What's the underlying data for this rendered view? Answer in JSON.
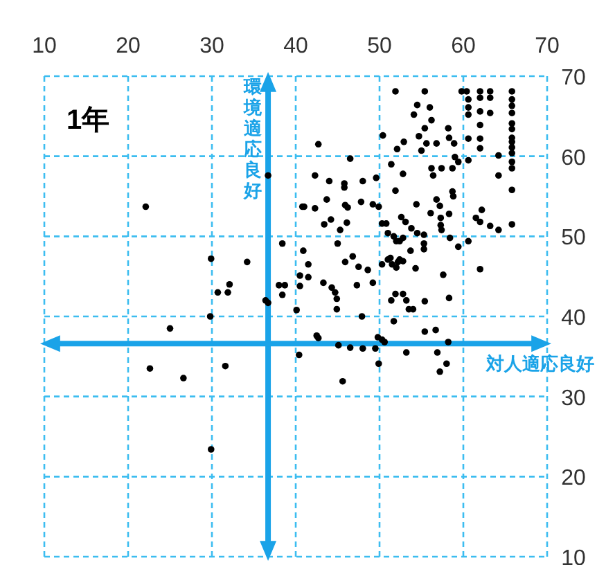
{
  "chart_data": {
    "type": "scatter",
    "title": "1年",
    "xlim": [
      10,
      70
    ],
    "ylim": [
      10,
      70
    ],
    "xticks": [
      10,
      20,
      30,
      40,
      50,
      60,
      70
    ],
    "yticks": [
      10,
      20,
      30,
      40,
      50,
      60,
      70
    ],
    "grid": true,
    "marker": "circle",
    "ref_lines": [
      {
        "axis": "x",
        "value": 36.7,
        "label": "環境適応良好",
        "color": "#1aa3e8"
      },
      {
        "axis": "y",
        "value": 36.6,
        "label": "対人適応良好",
        "color": "#1aa3e8"
      }
    ],
    "series": [
      {
        "color": "#000000",
        "x": [
          22.1,
          36.7,
          38.4,
          40.8,
          40.9,
          29.9,
          34.2,
          32.1,
          31.9,
          30.7,
          38.0,
          38.7,
          38.4,
          40.5,
          40.5,
          36.4,
          36.7,
          40.1,
          29.8,
          25.0,
          22.6,
          26.6,
          31.6,
          29.9,
          40.4,
          51.9,
          55.4,
          59.8,
          60.4,
          62.0,
          63.2,
          65.8,
          54.5,
          56.0,
          54.1,
          60.6,
          62.0,
          63.2,
          65.8,
          65.8,
          60.6,
          60.6,
          62.0,
          63.2,
          65.8,
          56.2,
          55.4,
          58.2,
          62.0,
          65.8,
          65.8,
          50.4,
          54.7,
          58.3,
          60.6,
          62.0,
          65.8,
          65.8,
          42.7,
          52.9,
          55.6,
          56.8,
          58.9,
          52.1,
          55.0,
          62.0,
          65.8,
          65.8,
          46.5,
          59.0,
          59.4,
          60.6,
          64.2,
          51.4,
          65.8,
          65.8,
          56.2,
          57.4,
          58.7,
          56.4,
          42.3,
          52.8,
          64.2,
          49.6,
          44.0,
          45.8,
          48.0,
          45.8,
          51.9,
          65.8,
          58.7,
          58.8,
          43.7,
          56.8,
          47.8,
          49.2,
          54.4,
          41.0,
          42.3,
          45.9,
          46.2,
          49.9,
          57.2,
          62.2,
          56.1,
          58.3,
          44.2,
          52.6,
          61.5,
          62.0,
          57.3,
          43.4,
          46.1,
          53.1,
          50.3,
          50.8,
          57.3,
          63.2,
          65.8,
          53.8,
          45.3,
          57.4,
          64.2,
          51.0,
          54.5,
          55.3,
          51.7,
          52.0,
          52.4,
          58.4,
          60.6,
          52.8,
          45.0,
          55.3,
          55.3,
          59.4,
          53.7,
          51.3,
          46.8,
          45.9,
          51.0,
          52.4,
          41.5,
          47.5,
          50.3,
          51.5,
          52.2,
          52.8,
          52.0,
          48.6,
          54.3,
          62.0,
          41.5,
          57.6,
          43.3,
          47.3,
          49.2,
          44.3,
          44.7,
          44.9,
          44.9,
          47.9,
          51.4,
          51.9,
          52.8,
          53.2,
          53.5,
          54.0,
          55.4,
          58.3,
          51.7,
          42.5,
          42.7,
          45.1,
          46.5,
          48.0,
          49.5,
          49.8,
          50.3,
          50.6,
          49.9,
          45.6,
          53.2,
          55.4,
          56.7,
          58.2,
          56.9,
          58.0,
          57.2
        ],
        "values": [
          53.7,
          57.6,
          49.1,
          53.7,
          48.2,
          47.2,
          46.8,
          44.0,
          43.0,
          43.0,
          43.9,
          43.9,
          42.7,
          45.1,
          43.8,
          42.0,
          41.7,
          40.8,
          40.0,
          38.5,
          33.5,
          32.3,
          33.8,
          23.4,
          35.2,
          68.1,
          68.1,
          68.1,
          68.1,
          68.1,
          68.1,
          68.1,
          66.4,
          66.1,
          65.2,
          67.1,
          67.3,
          67.3,
          67.1,
          66.3,
          66.1,
          65.2,
          65.6,
          65.4,
          65.4,
          64.5,
          63.5,
          63.5,
          63.9,
          64.1,
          63.4,
          62.6,
          62.5,
          62.3,
          62.2,
          62.2,
          62.3,
          61.8,
          61.5,
          61.8,
          61.6,
          61.6,
          61.6,
          60.9,
          60.7,
          61.0,
          61.1,
          60.4,
          59.7,
          59.9,
          59.3,
          59.5,
          60.1,
          59.0,
          59.3,
          58.5,
          58.5,
          58.5,
          58.5,
          57.6,
          57.6,
          57.8,
          57.6,
          57.3,
          56.9,
          56.6,
          56.9,
          56.1,
          55.7,
          55.8,
          55.6,
          55.0,
          54.6,
          54.6,
          54.3,
          54.0,
          54.0,
          53.7,
          53.5,
          53.9,
          53.6,
          53.7,
          53.8,
          53.3,
          52.9,
          52.8,
          52.1,
          52.4,
          52.3,
          51.8,
          52.3,
          51.5,
          51.7,
          51.8,
          51.6,
          51.6,
          51.4,
          51.3,
          51.5,
          51.0,
          50.8,
          50.8,
          50.8,
          50.4,
          50.4,
          50.2,
          50.0,
          49.4,
          49.4,
          49.8,
          49.4,
          49.8,
          49.1,
          49.1,
          48.4,
          48.7,
          48.2,
          47.3,
          47.5,
          46.8,
          47.1,
          47.1,
          46.5,
          46.2,
          46.5,
          46.5,
          46.8,
          46.9,
          46.1,
          45.8,
          46.0,
          45.9,
          44.9,
          45.2,
          44.2,
          43.9,
          44.2,
          43.6,
          43.0,
          42.2,
          40.9,
          40.0,
          42.0,
          42.8,
          42.8,
          42.0,
          40.9,
          40.9,
          41.9,
          42.3,
          39.4,
          37.6,
          37.3,
          36.4,
          36.1,
          36.0,
          36.0,
          37.4,
          37.1,
          36.8,
          34.1,
          31.9,
          35.5,
          38.1,
          38.3,
          36.8,
          35.5,
          34.1,
          33.1
        ]
      }
    ]
  }
}
